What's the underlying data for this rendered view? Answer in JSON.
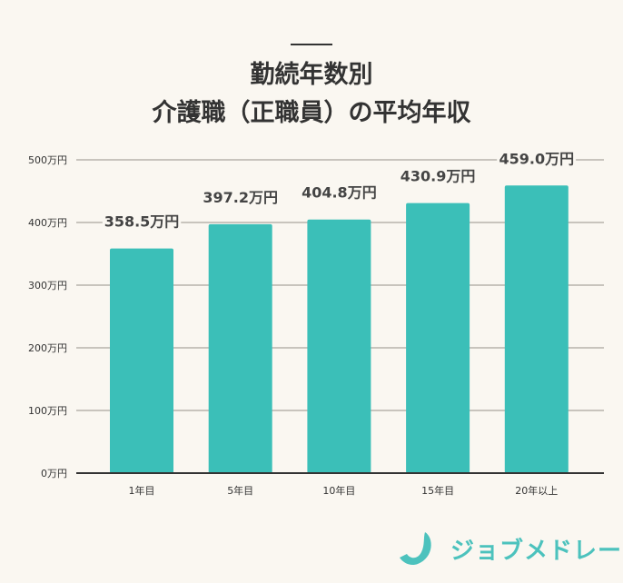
{
  "chart_data": {
    "type": "bar",
    "title_lines": [
      "勤続年数別",
      "介護職（正職員）の平均年収"
    ],
    "categories": [
      "1年目",
      "5年目",
      "10年目",
      "15年目",
      "20年以上"
    ],
    "values": [
      358.5,
      397.2,
      404.8,
      430.9,
      459.0
    ],
    "data_labels": [
      "358.5万円",
      "397.2万円",
      "404.8万円",
      "430.9万円",
      "459.0万円"
    ],
    "ylim": [
      0,
      500
    ],
    "yticks": [
      0,
      100,
      200,
      300,
      400,
      500
    ],
    "ytick_labels": [
      "0万円",
      "100万円",
      "200万円",
      "300万円",
      "400万円",
      "500万円"
    ],
    "grid": true,
    "colors": {
      "bar": "#3bbfb8",
      "grid": "#c8c4bd",
      "axis": "#333333",
      "background": "#faf7f1"
    }
  },
  "logo": {
    "text": "ジョブメドレー",
    "color": "#4cc2bd"
  }
}
